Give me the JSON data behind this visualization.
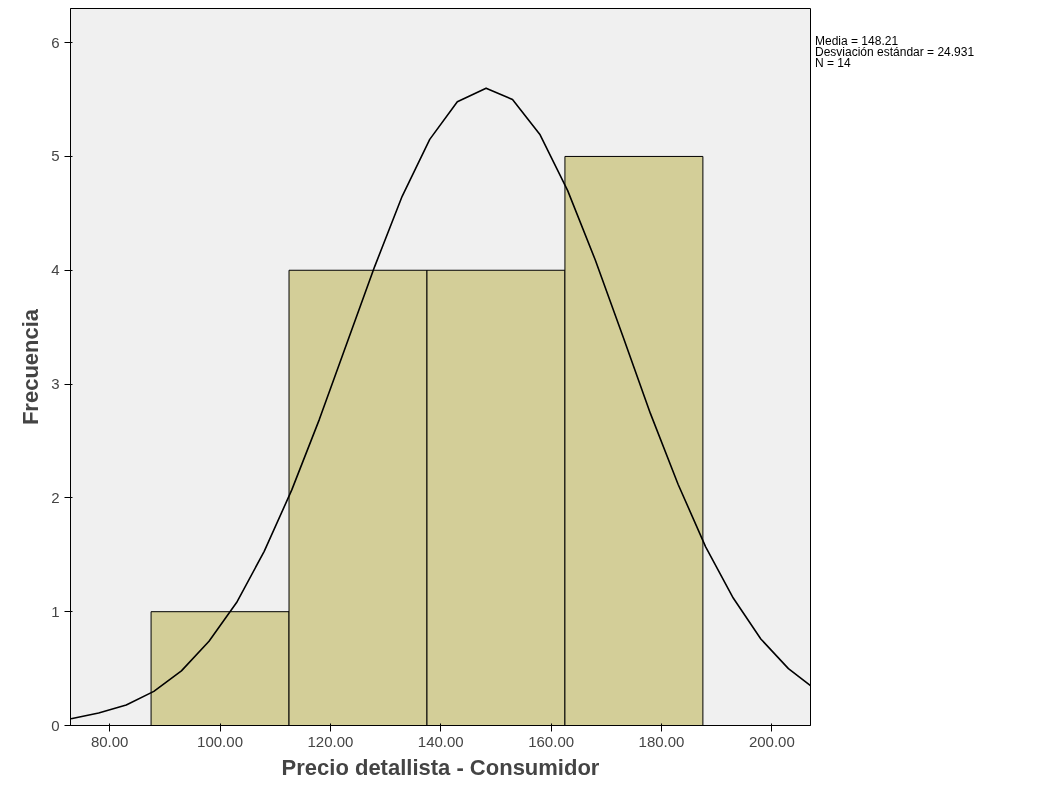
{
  "chart_data": {
    "type": "histogram",
    "xlabel": "Precio detallista - Consumidor",
    "ylabel": "Frecuencia",
    "bins": [
      87.5,
      112.5,
      137.5,
      162.5,
      187.5
    ],
    "values": [
      1,
      4,
      4,
      5
    ],
    "color": "#d3ce98",
    "series": [
      {
        "type": "line",
        "color": "#000000",
        "x": [
          73,
          78,
          83,
          88,
          93,
          98,
          103,
          108,
          113,
          118,
          123,
          128,
          133,
          138,
          143,
          148.21,
          153,
          158,
          163,
          168,
          173,
          178,
          183,
          188,
          193,
          198,
          203,
          207
        ],
        "values": [
          0.06,
          0.11,
          0.18,
          0.3,
          0.48,
          0.74,
          1.08,
          1.53,
          2.07,
          2.69,
          3.36,
          4.03,
          4.65,
          5.15,
          5.48,
          5.6,
          5.5,
          5.19,
          4.7,
          4.09,
          3.42,
          2.74,
          2.12,
          1.57,
          1.12,
          0.76,
          0.5,
          0.35
        ]
      }
    ],
    "xlim": [
      72.9,
      207
    ],
    "ylim": [
      0,
      6.3
    ],
    "xticks": [
      {
        "value": 80,
        "label": "80.00"
      },
      {
        "value": 100,
        "label": "100.00"
      },
      {
        "value": 120,
        "label": "120.00"
      },
      {
        "value": 140,
        "label": "140.00"
      },
      {
        "value": 160,
        "label": "160.00"
      },
      {
        "value": 180,
        "label": "180.00"
      },
      {
        "value": 200,
        "label": "200.00"
      }
    ],
    "yticks": [
      0,
      1,
      2,
      3,
      4,
      5,
      6
    ],
    "grid": false,
    "annotations": [
      "Media = 148.21",
      "Desviación estándar = 24.931",
      "N = 14"
    ]
  }
}
